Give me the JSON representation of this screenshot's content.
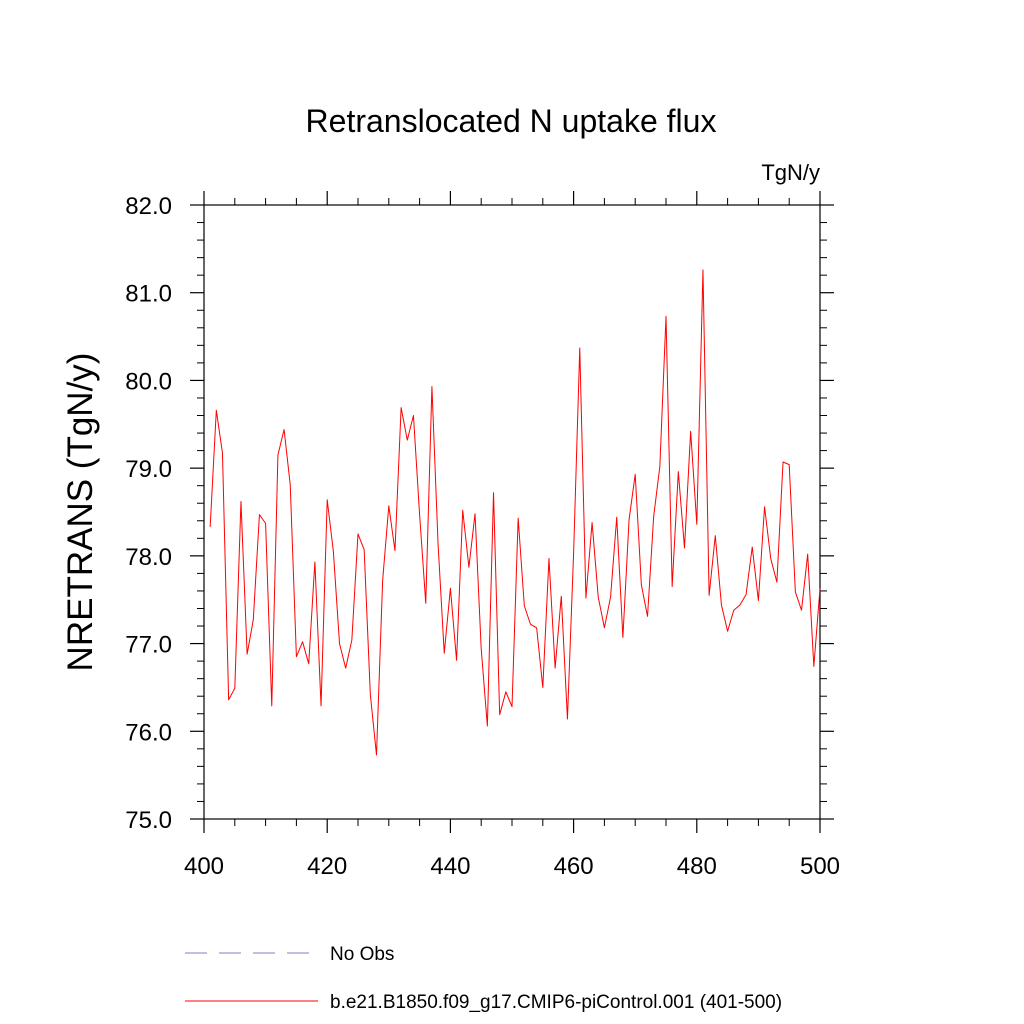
{
  "chart_data": {
    "type": "line",
    "title": "Retranslocated N uptake flux",
    "units_label": "TgN/y",
    "xlabel": "",
    "ylabel": "NRETRANS  (TgN/y)",
    "xlim": [
      400,
      500
    ],
    "ylim": [
      75.0,
      82.0
    ],
    "x_ticks": [
      400,
      420,
      440,
      460,
      480,
      500
    ],
    "x_tick_labels": [
      "400",
      "420",
      "440",
      "460",
      "480",
      "500"
    ],
    "y_ticks": [
      75.0,
      76.0,
      77.0,
      78.0,
      79.0,
      80.0,
      81.0,
      82.0
    ],
    "y_tick_labels": [
      "75.0",
      "76.0",
      "77.0",
      "78.0",
      "79.0",
      "80.0",
      "81.0",
      "82.0"
    ],
    "grid": false,
    "legend_position": "bottom",
    "series": [
      {
        "name": "b.e21.B1850.f09_g17.CMIP6-piControl.001 (401-500)",
        "color": "#ff0000",
        "style": "solid",
        "x": [
          401,
          402,
          403,
          404,
          405,
          406,
          407,
          408,
          409,
          410,
          411,
          412,
          413,
          414,
          415,
          416,
          417,
          418,
          419,
          420,
          421,
          422,
          423,
          424,
          425,
          426,
          427,
          428,
          429,
          430,
          431,
          432,
          433,
          434,
          435,
          436,
          437,
          438,
          439,
          440,
          441,
          442,
          443,
          444,
          445,
          446,
          447,
          448,
          449,
          450,
          451,
          452,
          453,
          454,
          455,
          456,
          457,
          458,
          459,
          460,
          461,
          462,
          463,
          464,
          465,
          466,
          467,
          468,
          469,
          470,
          471,
          472,
          473,
          474,
          475,
          476,
          477,
          478,
          479,
          480,
          481,
          482,
          483,
          484,
          485,
          486,
          487,
          488,
          489,
          490,
          491,
          492,
          493,
          494,
          495,
          496,
          497,
          498,
          499,
          500
        ],
        "values": [
          78.33,
          79.66,
          79.17,
          76.36,
          76.49,
          78.62,
          76.88,
          77.27,
          78.47,
          78.37,
          76.29,
          79.15,
          79.44,
          78.81,
          76.85,
          77.02,
          76.77,
          77.93,
          76.29,
          78.64,
          78.05,
          77.0,
          76.72,
          77.04,
          78.25,
          78.07,
          76.42,
          75.73,
          77.72,
          78.57,
          78.06,
          79.69,
          79.32,
          79.6,
          78.47,
          77.46,
          79.93,
          78.13,
          76.89,
          77.63,
          76.81,
          78.52,
          77.87,
          78.48,
          76.94,
          76.06,
          78.72,
          76.19,
          76.45,
          76.28,
          78.43,
          77.43,
          77.22,
          77.18,
          76.5,
          77.97,
          76.72,
          77.54,
          76.14,
          78.03,
          80.37,
          77.52,
          78.38,
          77.53,
          77.18,
          77.53,
          78.44,
          77.07,
          78.41,
          78.93,
          77.67,
          77.31,
          78.45,
          79.02,
          80.73,
          77.65,
          78.96,
          78.09,
          79.42,
          78.36,
          81.26,
          77.55,
          78.23,
          77.44,
          77.14,
          77.38,
          77.44,
          77.56,
          78.1,
          77.49,
          78.56,
          77.97,
          77.7,
          79.07,
          79.04,
          77.59,
          77.38,
          78.02,
          76.74,
          77.63
        ]
      },
      {
        "name": "No Obs",
        "color": "#8080c0",
        "style": "dashed",
        "x": [],
        "values": []
      }
    ]
  }
}
